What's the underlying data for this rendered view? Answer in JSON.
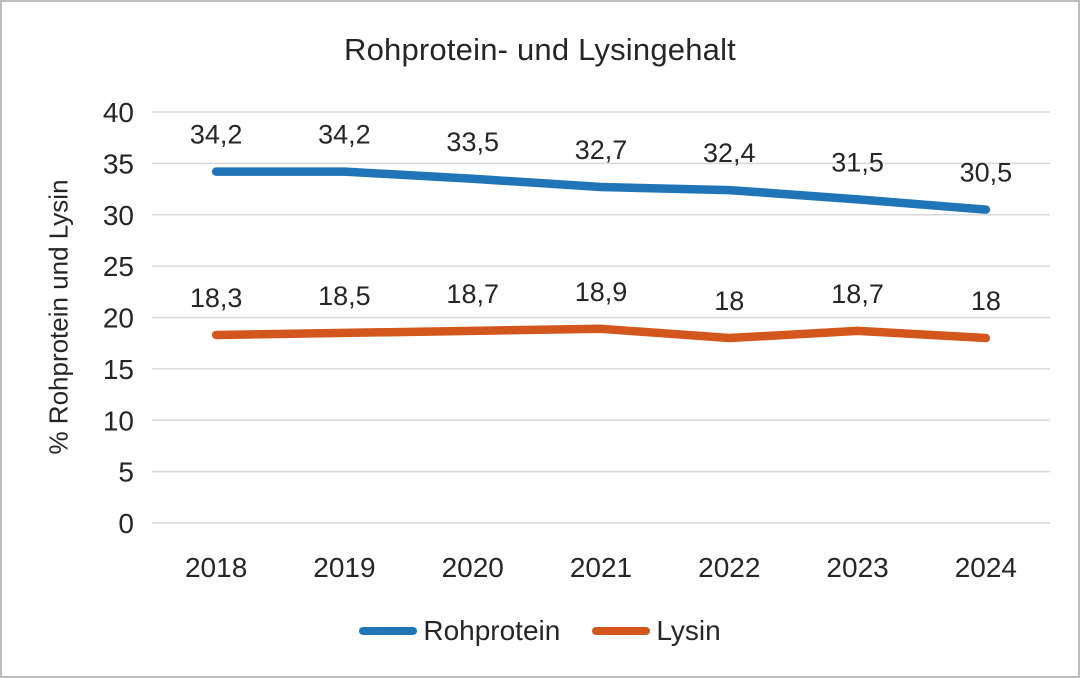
{
  "chart_data": {
    "type": "line",
    "title": "Rohprotein- und Lysingehalt",
    "xlabel": "",
    "ylabel": "% Rohprotein und Lysin",
    "categories": [
      "2018",
      "2019",
      "2020",
      "2021",
      "2022",
      "2023",
      "2024"
    ],
    "series": [
      {
        "name": "Rohprotein",
        "color": "#2074B8",
        "values": [
          34.2,
          34.2,
          33.5,
          32.7,
          32.4,
          31.5,
          30.5
        ],
        "labels": [
          "34,2",
          "34,2",
          "33,5",
          "32,7",
          "32,4",
          "31,5",
          "30,5"
        ]
      },
      {
        "name": "Lysin",
        "color": "#D3571C",
        "values": [
          18.3,
          18.5,
          18.7,
          18.9,
          18,
          18.7,
          18
        ],
        "labels": [
          "18,3",
          "18,5",
          "18,7",
          "18,9",
          "18",
          "18,7",
          "18"
        ]
      }
    ],
    "ylim": [
      0,
      40
    ],
    "yticks": [
      0,
      5,
      10,
      15,
      20,
      25,
      30,
      35,
      40
    ],
    "grid": true,
    "legend_position": "bottom"
  },
  "colors": {
    "grid": "#D9D9D9",
    "text": "#262626",
    "background": "#FFFFFF",
    "border": "#BDBDBD"
  }
}
